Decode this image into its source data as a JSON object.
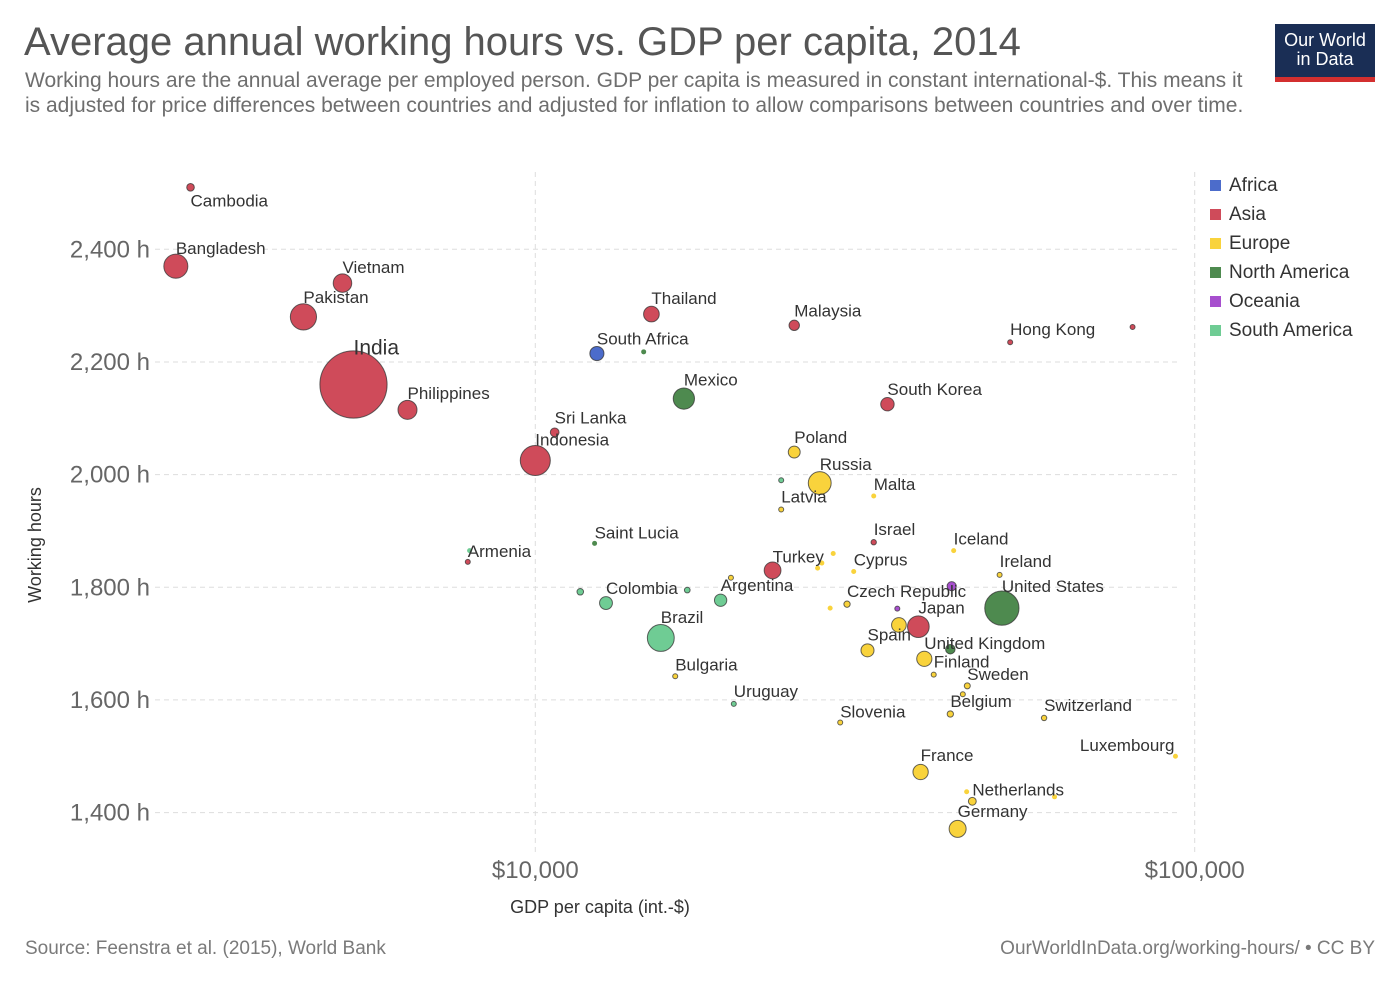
{
  "header": {
    "title": "Average annual working hours vs. GDP per capita, 2014",
    "subtitle": "Working hours are the annual average per employed person. GDP per capita is measured in constant international-$. This means it is adjusted for price differences between countries and adjusted for inflation to allow comparisons between countries and over time.",
    "logo_line1": "Our World",
    "logo_line2": "in Data"
  },
  "footer": {
    "source": "Source: Feenstra et al. (2015), World Bank",
    "credit": "OurWorldInData.org/working-hours/ • CC BY"
  },
  "colors": {
    "Africa": "#4c6ccb",
    "Asia": "#cf4b5a",
    "Europe": "#f9d33c",
    "North America": "#4e8a4f",
    "Oceania": "#a74fce",
    "South America": "#6fcc94"
  },
  "legend": [
    {
      "label": "Africa",
      "color": "#4c6ccb"
    },
    {
      "label": "Asia",
      "color": "#cf4b5a"
    },
    {
      "label": "Europe",
      "color": "#f9d33c"
    },
    {
      "label": "North America",
      "color": "#4e8a4f"
    },
    {
      "label": "Oceania",
      "color": "#a74fce"
    },
    {
      "label": "South America",
      "color": "#6fcc94"
    }
  ],
  "chart_data": {
    "type": "scatter",
    "title": "Average annual working hours vs. GDP per capita, 2014",
    "xlabel": "GDP per capita (int.-$)",
    "ylabel": "Working hours",
    "x_scale": "log",
    "xlim": [
      2650,
      95000
    ],
    "ylim": [
      1330,
      2555
    ],
    "x_ticks": [
      {
        "value": 10000,
        "label": "$10,000"
      },
      {
        "value": 100000,
        "label": "$100,000"
      }
    ],
    "y_ticks": [
      {
        "value": 1400,
        "label": "1,400 h"
      },
      {
        "value": 1600,
        "label": "1,600 h"
      },
      {
        "value": 1800,
        "label": "1,800 h"
      },
      {
        "value": 2000,
        "label": "2,000 h"
      },
      {
        "value": 2200,
        "label": "2,200 h"
      },
      {
        "value": 2400,
        "label": "2,400 h"
      }
    ],
    "grid": true,
    "legend_position": "right",
    "size_encoding": "population (relative)",
    "points": [
      {
        "label": "Cambodia",
        "x": 3000,
        "y": 2510,
        "region": "Asia",
        "size": 0.16
      },
      {
        "label": "Bangladesh",
        "x": 2850,
        "y": 2370,
        "region": "Asia",
        "size": 1.6
      },
      {
        "label": "Vietnam",
        "x": 5100,
        "y": 2340,
        "region": "Asia",
        "size": 0.95
      },
      {
        "label": "Pakistan",
        "x": 4450,
        "y": 2280,
        "region": "Asia",
        "size": 1.9
      },
      {
        "label": "India",
        "x": 5300,
        "y": 2160,
        "region": "Asia",
        "size": 12.5
      },
      {
        "label": "Philippines",
        "x": 6400,
        "y": 2115,
        "region": "Asia",
        "size": 1.0
      },
      {
        "label": "Indonesia",
        "x": 10000,
        "y": 2025,
        "region": "Asia",
        "size": 2.5
      },
      {
        "label": "Sri Lanka",
        "x": 10700,
        "y": 2075,
        "region": "Asia",
        "size": 0.21
      },
      {
        "label": "Thailand",
        "x": 15000,
        "y": 2285,
        "region": "Asia",
        "size": 0.68
      },
      {
        "label": "Malaysia",
        "x": 24700,
        "y": 2265,
        "region": "Asia",
        "size": 0.3
      },
      {
        "label": "Hong Kong",
        "x": 52500,
        "y": 2235,
        "region": "Asia",
        "size": 0.07
      },
      {
        "label": "",
        "x": 80500,
        "y": 2262,
        "region": "Asia",
        "size": 0.02
      },
      {
        "label": "South Korea",
        "x": 34200,
        "y": 2125,
        "region": "Asia",
        "size": 0.5
      },
      {
        "label": "Israel",
        "x": 32600,
        "y": 1880,
        "region": "Asia",
        "size": 0.08
      },
      {
        "label": "Japan",
        "x": 38100,
        "y": 1730,
        "region": "Asia",
        "size": 1.3
      },
      {
        "label": "Turkey",
        "x": 22900,
        "y": 1830,
        "region": "Asia",
        "size": 0.78
      },
      {
        "label": "Armenia",
        "x": 7900,
        "y": 1845,
        "region": "Asia",
        "size": 0.03
      },
      {
        "label": "South Africa",
        "x": 12400,
        "y": 2215,
        "region": "Africa",
        "size": 0.55
      },
      {
        "label": "",
        "x": 14600,
        "y": 2218,
        "region": "North America",
        "size": 0.01
      },
      {
        "label": "Mexico",
        "x": 16800,
        "y": 2135,
        "region": "North America",
        "size": 1.25
      },
      {
        "label": "Saint Lucia",
        "x": 12300,
        "y": 1878,
        "region": "North America",
        "size": 0.01
      },
      {
        "label": "United States",
        "x": 51000,
        "y": 1763,
        "region": "North America",
        "size": 3.25
      },
      {
        "label": "",
        "x": 42600,
        "y": 1690,
        "region": "North America",
        "size": 0.25
      },
      {
        "label": "Poland",
        "x": 24700,
        "y": 2040,
        "region": "Europe",
        "size": 0.39
      },
      {
        "label": "Russia",
        "x": 27000,
        "y": 1985,
        "region": "Europe",
        "size": 1.45
      },
      {
        "label": "Malta",
        "x": 32600,
        "y": 1962,
        "region": "Europe",
        "size": 0.01
      },
      {
        "label": "Latvia",
        "x": 23600,
        "y": 1938,
        "region": "Europe",
        "size": 0.02
      },
      {
        "label": "",
        "x": 28300,
        "y": 1860,
        "region": "Europe",
        "size": 0.01
      },
      {
        "label": "",
        "x": 27200,
        "y": 1843,
        "region": "Europe",
        "size": 0.01
      },
      {
        "label": "",
        "x": 26800,
        "y": 1834,
        "region": "Europe",
        "size": 0.01
      },
      {
        "label": "",
        "x": 19800,
        "y": 1817,
        "region": "Europe",
        "size": 0.05
      },
      {
        "label": "Cyprus",
        "x": 30400,
        "y": 1828,
        "region": "Europe",
        "size": 0.01
      },
      {
        "label": "Iceland",
        "x": 43100,
        "y": 1865,
        "region": "Europe",
        "size": 0.004
      },
      {
        "label": "Ireland",
        "x": 50600,
        "y": 1822,
        "region": "Europe",
        "size": 0.05
      },
      {
        "label": "Czech Republic",
        "x": 29700,
        "y": 1770,
        "region": "Europe",
        "size": 0.11
      },
      {
        "label": "",
        "x": 28000,
        "y": 1763,
        "region": "Europe",
        "size": 0.01
      },
      {
        "label": "",
        "x": 35600,
        "y": 1733,
        "region": "Europe",
        "size": 0.6
      },
      {
        "label": "Spain",
        "x": 31900,
        "y": 1688,
        "region": "Europe",
        "size": 0.47
      },
      {
        "label": "United Kingdom",
        "x": 38900,
        "y": 1673,
        "region": "Europe",
        "size": 0.64
      },
      {
        "label": "Finland",
        "x": 40200,
        "y": 1645,
        "region": "Europe",
        "size": 0.06
      },
      {
        "label": "Sweden",
        "x": 45200,
        "y": 1625,
        "region": "Europe",
        "size": 0.1
      },
      {
        "label": "",
        "x": 44500,
        "y": 1610,
        "region": "Europe",
        "size": 0.02
      },
      {
        "label": "Belgium",
        "x": 42600,
        "y": 1575,
        "region": "Europe",
        "size": 0.11
      },
      {
        "label": "Switzerland",
        "x": 59100,
        "y": 1568,
        "region": "Europe",
        "size": 0.08
      },
      {
        "label": "Slovenia",
        "x": 29000,
        "y": 1560,
        "region": "Europe",
        "size": 0.02
      },
      {
        "label": "Bulgaria",
        "x": 16300,
        "y": 1642,
        "region": "Europe",
        "size": 0.07
      },
      {
        "label": "France",
        "x": 38400,
        "y": 1472,
        "region": "Europe",
        "size": 0.65
      },
      {
        "label": "",
        "x": 45100,
        "y": 1437,
        "region": "Europe",
        "size": 0.01
      },
      {
        "label": "Netherlands",
        "x": 46000,
        "y": 1420,
        "region": "Europe",
        "size": 0.17
      },
      {
        "label": "",
        "x": 61300,
        "y": 1428,
        "region": "Europe",
        "size": 0.005
      },
      {
        "label": "Germany",
        "x": 43700,
        "y": 1371,
        "region": "Europe",
        "size": 0.8
      },
      {
        "label": "Luxembourg",
        "x": 93500,
        "y": 1500,
        "region": "Europe",
        "size": 0.006
      },
      {
        "label": "",
        "x": 35400,
        "y": 1762,
        "region": "Oceania",
        "size": 0.02
      },
      {
        "label": "",
        "x": 42800,
        "y": 1802,
        "region": "Oceania",
        "size": 0.23
      },
      {
        "label": "",
        "x": 7950,
        "y": 1865,
        "region": "South America",
        "size": 0.01
      },
      {
        "label": "",
        "x": 23600,
        "y": 1990,
        "region": "South America",
        "size": 0.05
      },
      {
        "label": "",
        "x": 11700,
        "y": 1792,
        "region": "South America",
        "size": 0.12
      },
      {
        "label": "Colombia",
        "x": 12800,
        "y": 1772,
        "region": "South America",
        "size": 0.46
      },
      {
        "label": "",
        "x": 17000,
        "y": 1795,
        "region": "South America",
        "size": 0.09
      },
      {
        "label": "Argentina",
        "x": 19100,
        "y": 1777,
        "region": "South America",
        "size": 0.42
      },
      {
        "label": "Brazil",
        "x": 15500,
        "y": 1710,
        "region": "South America",
        "size": 2.0
      },
      {
        "label": "Uruguay",
        "x": 20000,
        "y": 1593,
        "region": "South America",
        "size": 0.03
      }
    ]
  }
}
